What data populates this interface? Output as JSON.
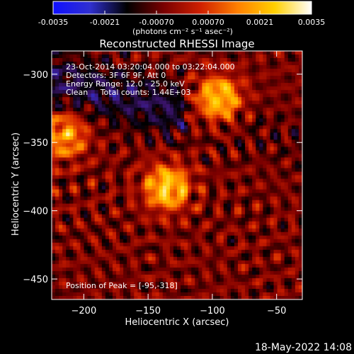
{
  "colorbar": {
    "ticks": [
      "-0.0035",
      "-0.0021",
      "-0.00070",
      "0.00070",
      "0.0021",
      "0.0035"
    ],
    "unit_label": "(photons cm⁻² s⁻¹ asec⁻²)",
    "stops": [
      "#1010ff",
      "#3030d0",
      "#000000",
      "#7a0000",
      "#d02000",
      "#ff8000",
      "#ffd000",
      "#ffffff"
    ]
  },
  "chart_data": {
    "type": "heatmap",
    "title": "Reconstructed RHESSI Image",
    "xlabel": "Heliocentric X (arcsec)",
    "ylabel": "Heliocentric Y (arcsec)",
    "xlim": [
      -225,
      -30
    ],
    "ylim": [
      -465,
      -283
    ],
    "xticks": [
      -200,
      -150,
      -100,
      -50
    ],
    "yticks": [
      -300,
      -350,
      -400,
      -450
    ],
    "color_range": [
      -0.0035,
      0.0035
    ],
    "peak": [
      -95,
      -318
    ],
    "sources": [
      {
        "x": -135,
        "y": -383,
        "amp": 1.0
      },
      {
        "x": -95,
        "y": -318,
        "amp": 1.0
      },
      {
        "x": -215,
        "y": -345,
        "amp": 0.8
      }
    ]
  },
  "annotations": [
    "23-Oct-2014 03:20:04.000 to 03:22:04.000",
    "Detectors: 3F 6F 9F, Att 0",
    "Energy Range: 12.0 - 25.0 keV",
    "Clean     Total counts: 1.44E+03"
  ],
  "peak_text": "Position of Peak = [-95,-318]",
  "footer": "18-May-2022 14:08"
}
